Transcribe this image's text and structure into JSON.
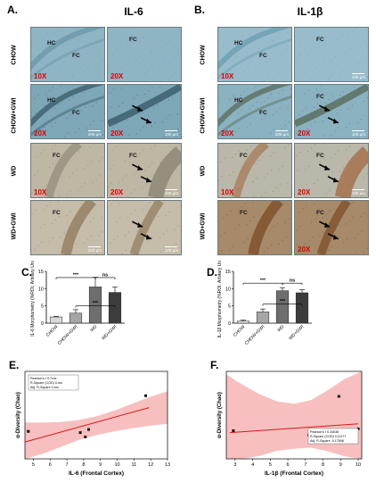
{
  "panels": {
    "A": {
      "letter": "A.",
      "title": "IL-6",
      "rows": [
        "CHOW",
        "CHOW+GWI",
        "WD",
        "WD+GWI"
      ],
      "tiles": [
        {
          "mag": "10X",
          "labels": [
            "HC",
            "FC"
          ],
          "scale": ""
        },
        {
          "mag": "20X",
          "labels": [
            "FC"
          ],
          "scale": ""
        },
        {
          "mag": "20X",
          "labels": [
            "HC",
            "FC"
          ],
          "scale": "200 µm"
        },
        {
          "mag": "20X",
          "labels": [],
          "scale": "100 µm"
        },
        {
          "mag": "10X",
          "labels": [
            "FC"
          ],
          "scale": ""
        },
        {
          "mag": "20X",
          "labels": [
            "FC"
          ],
          "scale": "100 µm"
        },
        {
          "mag": "",
          "labels": [
            "FC"
          ],
          "scale": "200 µm"
        },
        {
          "mag": "",
          "labels": [],
          "scale": "100 µm"
        }
      ]
    },
    "B": {
      "letter": "B.",
      "title": "IL-1β",
      "rows": [
        "CHOW",
        "CHOW+GWI",
        "WD",
        "WD+GWI"
      ],
      "tiles": [
        {
          "mag": "10X",
          "labels": [
            "HC",
            "FC"
          ],
          "scale": ""
        },
        {
          "mag": "",
          "labels": [
            "FC"
          ],
          "scale": "100 µm"
        },
        {
          "mag": "20X",
          "labels": [
            "HC",
            "FC"
          ],
          "scale": "200 µm"
        },
        {
          "mag": "20X",
          "labels": [
            "FC"
          ],
          "scale": "100 µm"
        },
        {
          "mag": "10X",
          "labels": [
            "FC"
          ],
          "scale": ""
        },
        {
          "mag": "20X",
          "labels": [
            "FC"
          ],
          "scale": "100 µm"
        },
        {
          "mag": "",
          "labels": [
            "FC"
          ],
          "scale": ""
        },
        {
          "mag": "20X",
          "labels": [
            "FC"
          ],
          "scale": ""
        }
      ]
    },
    "C": {
      "letter": "C."
    },
    "D": {
      "letter": "D."
    },
    "E": {
      "letter": "E."
    },
    "F": {
      "letter": "F."
    }
  },
  "chart_data": [
    {
      "id": "C",
      "type": "bar",
      "categories": [
        "CHOW",
        "CHOW+GWI",
        "WD",
        "WD+GWI"
      ],
      "values": [
        1.8,
        2.9,
        10.5,
        8.9
      ],
      "errors": [
        0.2,
        1.0,
        2.8,
        1.6
      ],
      "colors": [
        "#d9d9d9",
        "#a6a6a6",
        "#6e6e6e",
        "#3c3c3c"
      ],
      "ylabel": "IL-6 Morphometry (%ROI, Arbitary Unit)",
      "ylim": [
        0,
        15
      ],
      "yticks": [
        0,
        5,
        10,
        15
      ],
      "significance": [
        {
          "from": 0,
          "to": 2,
          "label": "***",
          "level": 13.2
        },
        {
          "from": 2,
          "to": 3,
          "label": "ns",
          "level": 13.2
        },
        {
          "from": 1,
          "to": 3,
          "label": "***",
          "level": 5.0
        }
      ]
    },
    {
      "id": "D",
      "type": "bar",
      "categories": [
        "CHOW",
        "CHOW+GWI",
        "WD",
        "WD+GWI"
      ],
      "values": [
        0.6,
        3.3,
        9.4,
        8.8
      ],
      "errors": [
        0.3,
        0.8,
        0.9,
        0.9
      ],
      "colors": [
        "#d9d9d9",
        "#a6a6a6",
        "#6e6e6e",
        "#3c3c3c"
      ],
      "ylabel": "IL-1β Morphometry (%ROI, Arbitary Unit)",
      "ylim": [
        0,
        15
      ],
      "yticks": [
        0,
        5,
        10,
        15
      ],
      "significance": [
        {
          "from": 0,
          "to": 2,
          "label": "***",
          "level": 11.6
        },
        {
          "from": 2,
          "to": 3,
          "label": "ns",
          "level": 11.6
        },
        {
          "from": 1,
          "to": 3,
          "label": "***",
          "level": 5.5
        }
      ]
    },
    {
      "id": "E",
      "type": "scatter",
      "xlabel": "IL-6 (Frontal Cortex)",
      "ylabel": "α-Diversity (Chao)",
      "xlim": [
        4.5,
        13
      ],
      "xticks": [
        5,
        6,
        7,
        8,
        9,
        10,
        11,
        12,
        13
      ],
      "ylim": [
        0,
        140
      ],
      "points": [
        [
          4.7,
          44
        ],
        [
          7.8,
          42
        ],
        [
          8.1,
          35
        ],
        [
          8.3,
          47
        ],
        [
          11.7,
          101
        ]
      ],
      "fit": {
        "x": [
          4.5,
          11.9
        ],
        "y": [
          27,
          82
        ]
      },
      "band_upper": [
        58,
        58,
        59,
        62,
        68,
        77,
        88,
        99,
        108
      ],
      "band_lower": [
        -3,
        8,
        19,
        30,
        38,
        44,
        49,
        53,
        56
      ],
      "stats": {
        "line1": "Pearson's r    0.7xxx",
        "line2": "R-Square (COD)  0.xxx",
        "line3": "Adj. R-Square  0.xxx"
      }
    },
    {
      "id": "F",
      "type": "scatter",
      "xlabel": "IL-1β (Frontal Cortex)",
      "ylabel": "α-Diversity (Chao)",
      "xlim": [
        2.5,
        10.2
      ],
      "xticks": [
        3,
        4,
        5,
        6,
        7,
        8,
        9,
        10
      ],
      "ylim": [
        0,
        140
      ],
      "points": [
        [
          2.9,
          45
        ],
        [
          7.2,
          38
        ],
        [
          7.4,
          40
        ],
        [
          8.9,
          100
        ],
        [
          10.0,
          48
        ]
      ],
      "fit": {
        "x": [
          2.7,
          10.0
        ],
        "y": [
          42,
          56
        ]
      },
      "band_upper": [
        135,
        118,
        103,
        92,
        88,
        94,
        110,
        128,
        140
      ],
      "band_lower": [
        -10,
        -3,
        5,
        13,
        16,
        18,
        12,
        4,
        -5
      ],
      "stats": {
        "line1": "Pearson's r     0.34036",
        "line2": "R-Square (COD)   0.11177",
        "line3": "Adj. R-Square   -0.17698"
      }
    }
  ]
}
